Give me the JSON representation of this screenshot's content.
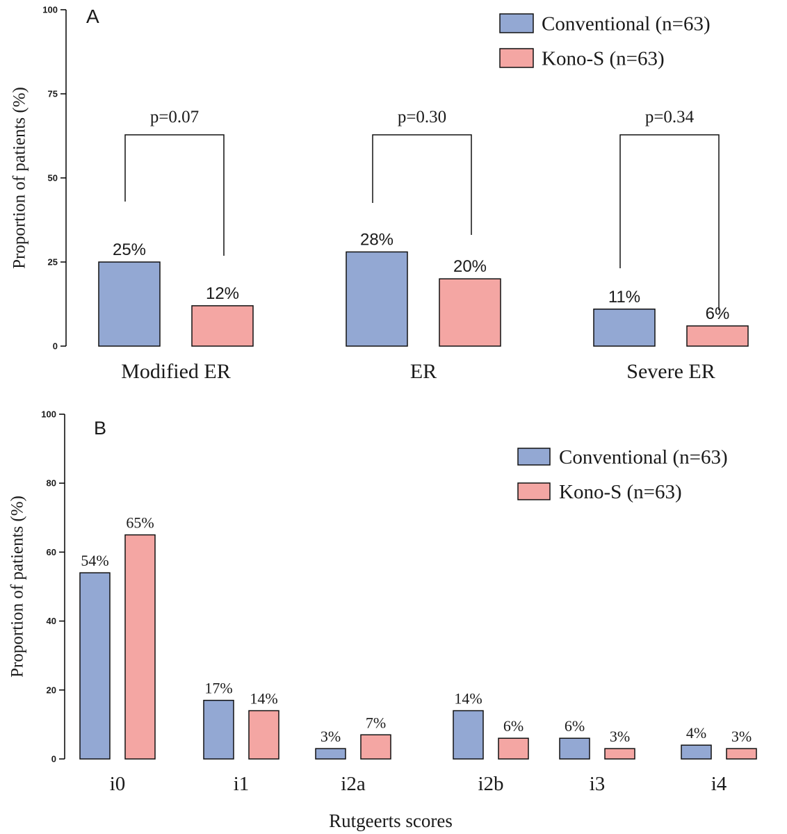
{
  "colors": {
    "conventional": "#93a8d3",
    "kono_s": "#f4a6a3",
    "axis": "#000000",
    "text": "#1a1a1a"
  },
  "chart_data": [
    {
      "panel_label": "A",
      "type": "bar",
      "categories": [
        "Modified ER",
        "ER",
        "Severe ER"
      ],
      "series": [
        {
          "name": "Conventional (n=63)",
          "key": "conventional",
          "values": [
            25,
            28,
            11
          ],
          "labels": [
            "25%",
            "28%",
            "11%"
          ]
        },
        {
          "name": "Kono-S (n=63)",
          "key": "kono_s",
          "values": [
            12,
            20,
            6
          ],
          "labels": [
            "12%",
            "20%",
            "6%"
          ]
        }
      ],
      "ylabel": "Proportion of patients (%)",
      "xlabel": "",
      "ylim": [
        0,
        100
      ],
      "yticks": [
        0,
        25,
        50,
        75,
        100
      ],
      "legend_position": "top-right",
      "annotations": [
        {
          "category": "Modified ER",
          "text": "p=0.07"
        },
        {
          "category": "ER",
          "text": "p=0.30"
        },
        {
          "category": "Severe ER",
          "text": "p=0.34"
        }
      ]
    },
    {
      "panel_label": "B",
      "type": "bar",
      "categories": [
        "i0",
        "i1",
        "i2a",
        "i2b",
        "i3",
        "i4"
      ],
      "series": [
        {
          "name": "Conventional (n=63)",
          "key": "conventional",
          "values": [
            54,
            17,
            3,
            14,
            6,
            4
          ],
          "labels": [
            "54%",
            "17%",
            "3%",
            "14%",
            "6%",
            "4%"
          ]
        },
        {
          "name": "Kono-S (n=63)",
          "key": "kono_s",
          "values": [
            65,
            14,
            7,
            6,
            3,
            3
          ],
          "labels": [
            "65%",
            "14%",
            "7%",
            "6%",
            "3%",
            "3%"
          ]
        }
      ],
      "ylabel": "Proportion of patients (%)",
      "xlabel": "Rutgeerts scores",
      "ylim": [
        0,
        100
      ],
      "yticks": [
        0,
        20,
        40,
        60,
        80,
        100
      ],
      "legend_position": "top-right",
      "annotations": []
    }
  ]
}
